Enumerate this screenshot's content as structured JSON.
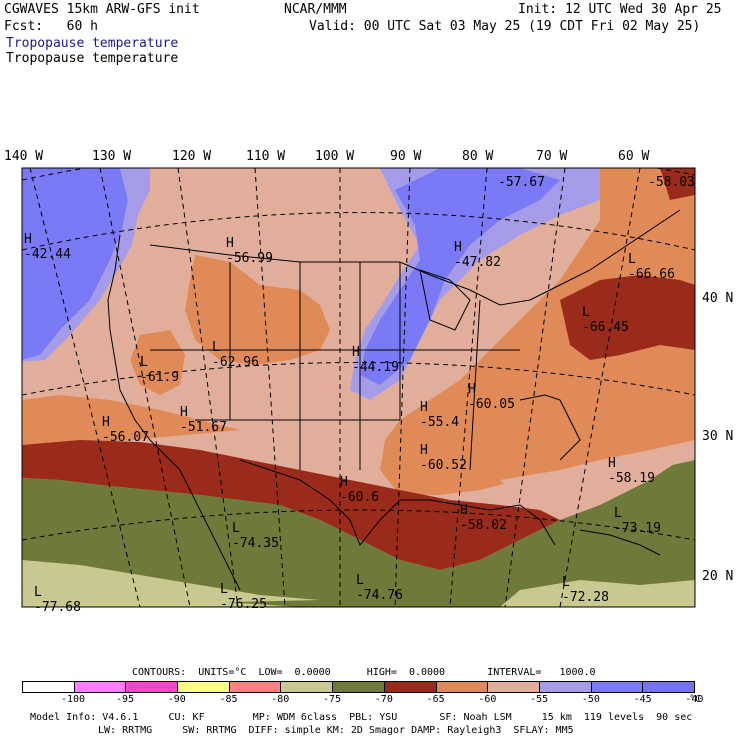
{
  "header": {
    "model": "CGWAVES 15km ARW-GFS init",
    "org": "NCAR/MMM",
    "init": "Init: 12 UTC Wed 30 Apr 25",
    "fcst": "Fcst:   60 h",
    "valid": "Valid: 00 UTC Sat 03 May 25 (19 CDT Fri 02 May 25)",
    "field_title_1": "Tropopause temperature",
    "field_title_2": "Tropopause temperature"
  },
  "longitude_labels": [
    "140 W",
    "130 W",
    "120 W",
    "110 W",
    "100 W",
    "90 W",
    "80 W",
    "70 W",
    "60 W"
  ],
  "latitude_labels": [
    "40 N",
    "30 N",
    "20 N"
  ],
  "extrema": [
    {
      "kind": "H",
      "value": "-42.44"
    },
    {
      "kind": "H",
      "value": "-56.99"
    },
    {
      "kind": "H",
      "value": "-57.67"
    },
    {
      "kind": "H",
      "value": "-58.03"
    },
    {
      "kind": "H",
      "value": "-47.82"
    },
    {
      "kind": "L",
      "value": "-66.66"
    },
    {
      "kind": "L",
      "value": "-66.45"
    },
    {
      "kind": "L",
      "value": "-61.9"
    },
    {
      "kind": "L",
      "value": "-62.96"
    },
    {
      "kind": "H",
      "value": "-44.19"
    },
    {
      "kind": "H",
      "value": "-56.07"
    },
    {
      "kind": "H",
      "value": "-51.67"
    },
    {
      "kind": "H",
      "value": "-55.4"
    },
    {
      "kind": "H",
      "value": "-60.05"
    },
    {
      "kind": "H",
      "value": "-60.52"
    },
    {
      "kind": "H",
      "value": "-60.6"
    },
    {
      "kind": "H",
      "value": "-58.02"
    },
    {
      "kind": "H",
      "value": "-58.19"
    },
    {
      "kind": "L",
      "value": "-73.19"
    },
    {
      "kind": "L",
      "value": "-74.35"
    },
    {
      "kind": "L",
      "value": "-74.76"
    },
    {
      "kind": "L",
      "value": "-76.25"
    },
    {
      "kind": "L",
      "value": "-77.68"
    },
    {
      "kind": "L",
      "value": "-72.28"
    }
  ],
  "contours": {
    "text": "CONTOURS:  UNITS=°C  LOW=  0.0000      HIGH=  0.0000       INTERVAL=   1000.0"
  },
  "legend": {
    "colors": [
      "#ffffff",
      "#ff7cff",
      "#ff44cc",
      "#ffff88",
      "#ff8080",
      "#c8c890",
      "#6e7a3a",
      "#9a2a1a",
      "#e08a58",
      "#e2ae9c",
      "#a49ce8",
      "#7a7af6",
      "#7474f2"
    ],
    "labels": [
      "-100",
      "-95",
      "-90",
      "-85",
      "-80",
      "-75",
      "-70",
      "-65",
      "-60",
      "-55",
      "-50",
      "-45",
      "-40"
    ],
    "unit": "°C"
  },
  "model_info": {
    "line1": "Model Info: V4.6.1     CU: KF        MP: WDM 6class  PBL: YSU       SF: Noah LSM     15 km  119 levels  90 sec",
    "line2": "LW: RRTMG     SW: RRTMG  DIFF: simple KM: 2D Smagor DAMP: Rayleigh3  SFLAY: MM5"
  }
}
